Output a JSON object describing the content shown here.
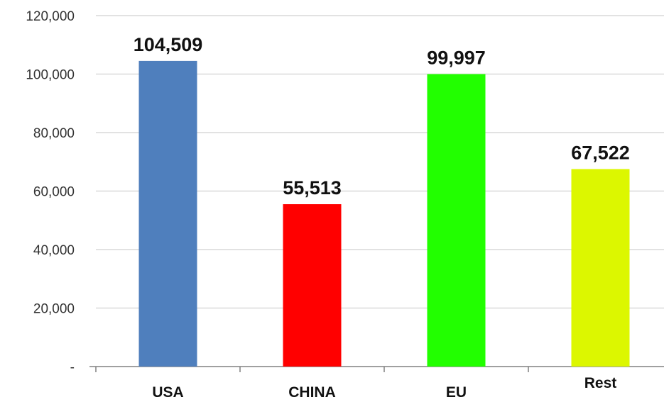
{
  "chart_data": {
    "type": "bar",
    "categories": [
      "USA",
      "CHINA",
      "EU",
      "Rest"
    ],
    "values": [
      104509,
      55513,
      99997,
      67522
    ],
    "data_labels": [
      "104,509",
      "55,513",
      "99,997",
      "67,522"
    ],
    "colors": [
      "#4f7fbd",
      "#ff0000",
      "#22ff00",
      "#dcf700"
    ],
    "ylim": [
      0,
      120000
    ],
    "yticks": [
      0,
      20000,
      40000,
      60000,
      80000,
      100000,
      120000
    ],
    "ytick_labels": [
      "-",
      "20,000",
      "40,000",
      "60,000",
      "80,000",
      "100,000",
      "120,000"
    ],
    "grid": true,
    "grid_color": "#d9d9d9",
    "axis_color": "#808080",
    "legend": "none",
    "title": "",
    "xlabel": "",
    "ylabel": ""
  }
}
